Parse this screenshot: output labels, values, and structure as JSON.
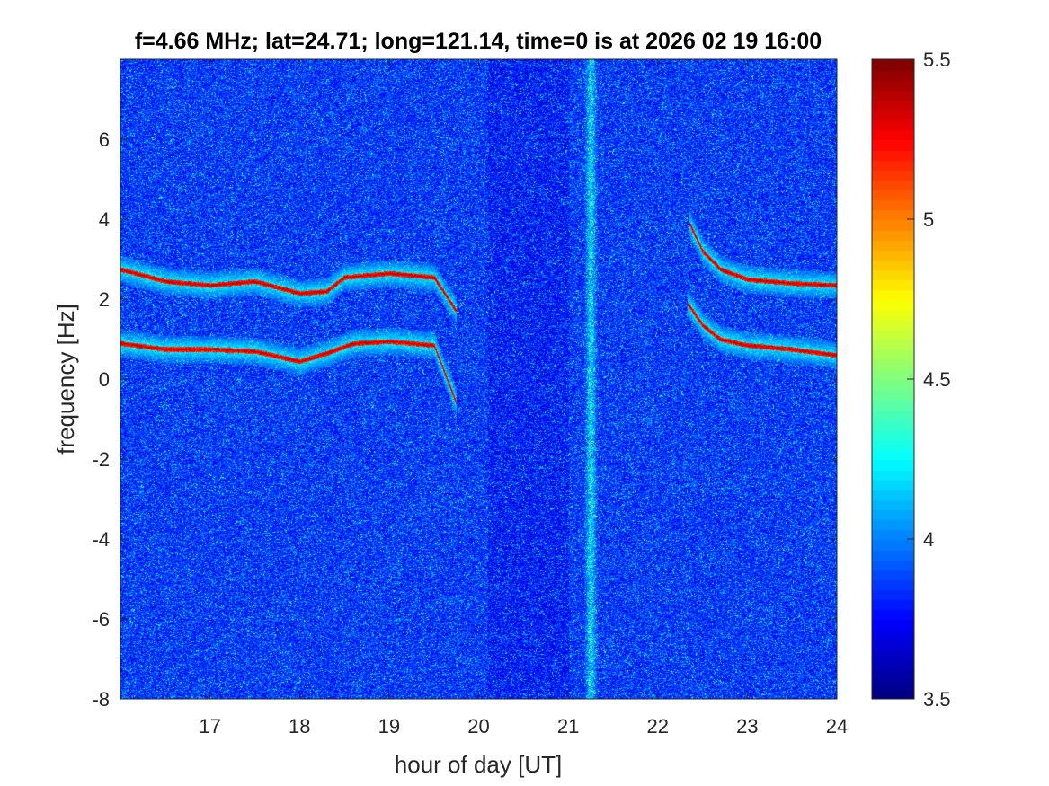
{
  "chart_data": {
    "type": "heatmap",
    "title": "f=4.66 MHz;  lat=24.71; long=121.14, time=0 is at 2026 02 19 16:00",
    "xlabel": "hour of day [UT]",
    "ylabel": "frequency [Hz]",
    "xlim": [
      16,
      24
    ],
    "ylim": [
      -8,
      8
    ],
    "xticks": [
      17,
      18,
      19,
      20,
      21,
      22,
      23,
      24
    ],
    "xtick_labels": [
      "17",
      "18",
      "19",
      "20",
      "21",
      "22",
      "23",
      "24"
    ],
    "yticks": [
      -8,
      -6,
      -4,
      -2,
      0,
      2,
      4,
      6
    ],
    "ytick_labels": [
      "-8",
      "-6",
      "-4",
      "-2",
      "0",
      "2",
      "4",
      "6"
    ],
    "colormap": "jet",
    "clim": [
      3.5,
      5.5
    ],
    "colorbar_ticks": [
      3.5,
      4,
      4.5,
      5,
      5.5
    ],
    "colorbar_tick_labels": [
      "3.5",
      "4",
      "4.5",
      "5",
      "5.5"
    ],
    "background_level": 3.8,
    "grid": false,
    "traces": [
      {
        "name": "",
        "level": 5.5,
        "points": [
          [
            16.0,
            2.75
          ],
          [
            16.5,
            2.45
          ],
          [
            17.0,
            2.35
          ],
          [
            17.5,
            2.45
          ],
          [
            18.0,
            2.15
          ],
          [
            18.3,
            2.2
          ],
          [
            18.5,
            2.55
          ],
          [
            19.0,
            2.65
          ],
          [
            19.5,
            2.55
          ],
          [
            19.75,
            1.7
          ]
        ]
      },
      {
        "name": "",
        "level": 5.5,
        "points": [
          [
            16.0,
            0.9
          ],
          [
            16.5,
            0.75
          ],
          [
            17.0,
            0.75
          ],
          [
            17.5,
            0.7
          ],
          [
            18.0,
            0.45
          ],
          [
            18.3,
            0.65
          ],
          [
            18.6,
            0.9
          ],
          [
            19.0,
            0.95
          ],
          [
            19.5,
            0.85
          ],
          [
            19.75,
            -0.6
          ]
        ]
      },
      {
        "name": "",
        "level": 5.5,
        "points": [
          [
            22.35,
            3.9
          ],
          [
            22.5,
            3.2
          ],
          [
            22.7,
            2.75
          ],
          [
            23.0,
            2.5
          ],
          [
            23.5,
            2.4
          ],
          [
            24.0,
            2.35
          ]
        ]
      },
      {
        "name": "",
        "level": 5.5,
        "points": [
          [
            22.33,
            1.9
          ],
          [
            22.5,
            1.35
          ],
          [
            22.7,
            1.0
          ],
          [
            23.0,
            0.85
          ],
          [
            23.5,
            0.75
          ],
          [
            24.0,
            0.6
          ]
        ]
      }
    ],
    "vertical_band": {
      "x": 21.25,
      "level": 4.2
    }
  }
}
